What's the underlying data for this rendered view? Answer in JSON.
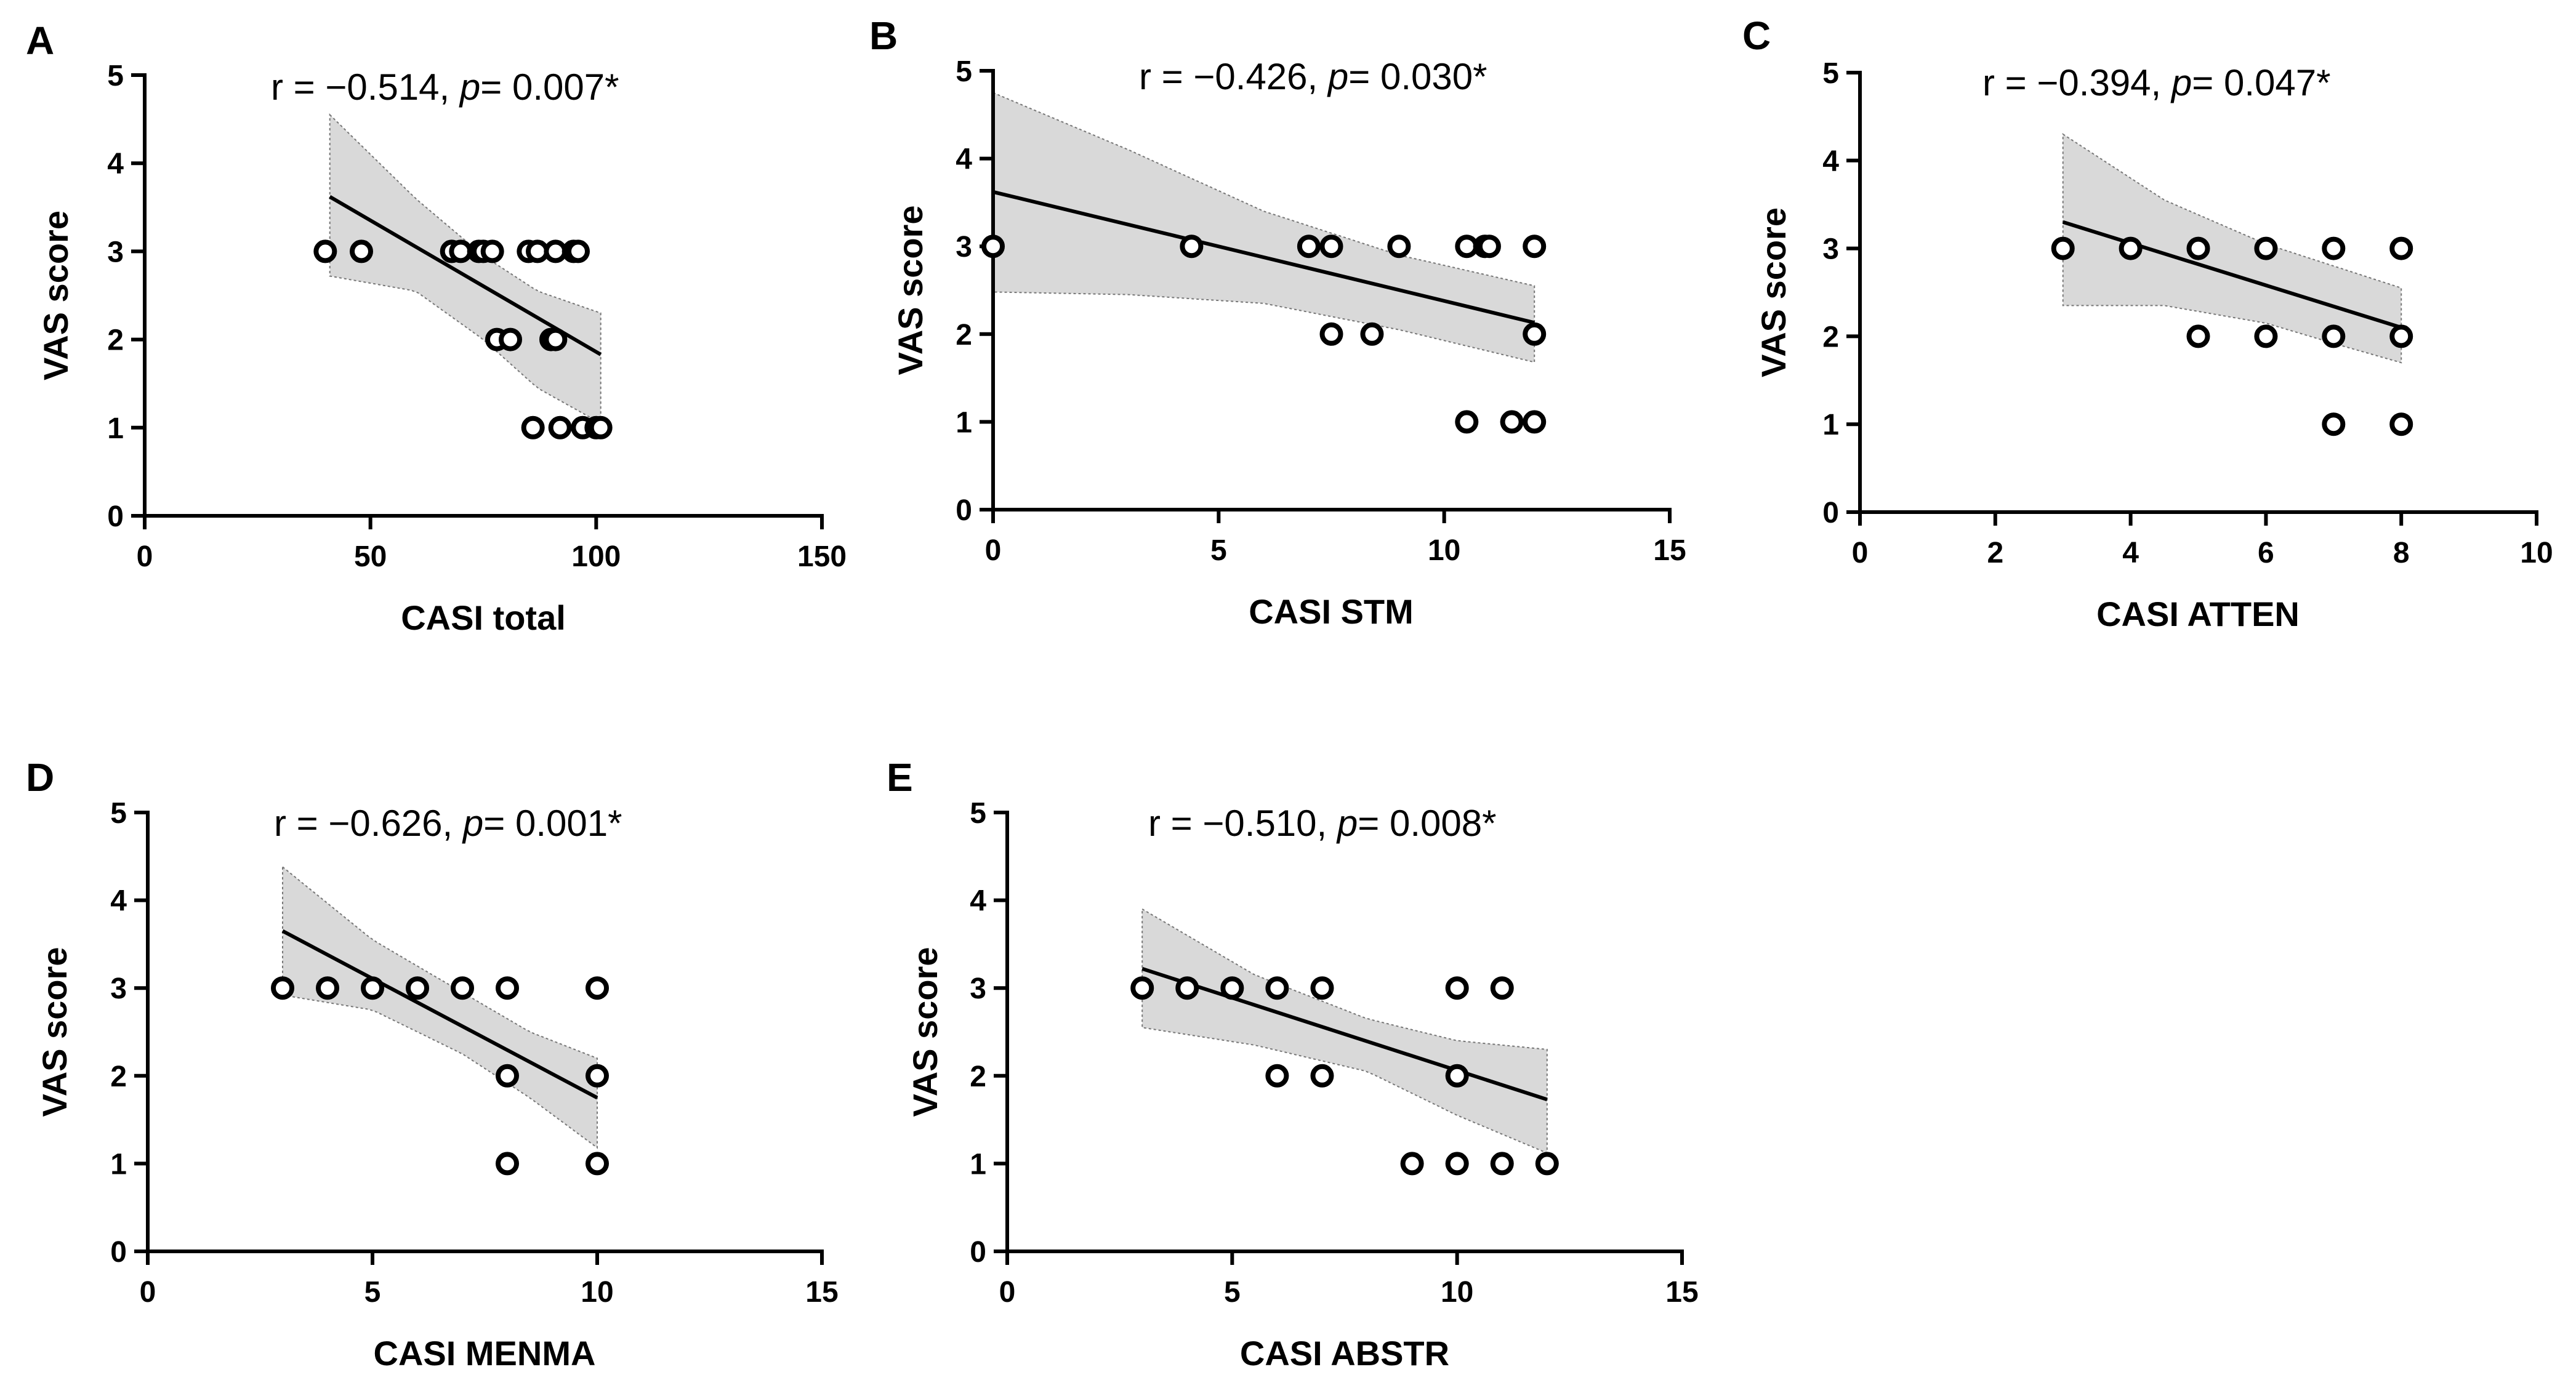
{
  "chart_data": [
    {
      "type": "scatter",
      "panel": "A",
      "xlabel": "CASI total",
      "ylabel": "VAS score",
      "annotation": {
        "prefix": "r = −0.514, ",
        "p_label": "p",
        "suffix": "= 0.007*"
      },
      "xlim": [
        0,
        150
      ],
      "ylim": [
        0,
        5
      ],
      "xticks": [
        0,
        50,
        100,
        150
      ],
      "yticks": [
        0,
        1,
        2,
        3,
        4,
        5
      ],
      "points": [
        [
          40,
          3
        ],
        [
          48,
          3
        ],
        [
          68,
          3
        ],
        [
          70,
          3
        ],
        [
          74,
          3
        ],
        [
          75,
          3
        ],
        [
          77,
          3
        ],
        [
          85,
          3
        ],
        [
          87,
          3
        ],
        [
          91,
          3
        ],
        [
          95,
          3
        ],
        [
          96,
          3
        ],
        [
          78,
          2
        ],
        [
          81,
          2
        ],
        [
          90,
          2
        ],
        [
          91,
          2
        ],
        [
          86,
          1
        ],
        [
          92,
          1
        ],
        [
          97,
          1
        ],
        [
          100,
          1
        ],
        [
          101,
          1
        ]
      ],
      "fit": {
        "x0": 41,
        "y0": 3.62,
        "x1": 101,
        "y1": 1.83
      },
      "ci_upper": [
        [
          41,
          4.55
        ],
        [
          60,
          3.6
        ],
        [
          75,
          2.95
        ],
        [
          87,
          2.55
        ],
        [
          101,
          2.3
        ]
      ],
      "ci_lower": [
        [
          41,
          2.72
        ],
        [
          60,
          2.55
        ],
        [
          75,
          2.0
        ],
        [
          87,
          1.45
        ],
        [
          101,
          1.05
        ]
      ]
    },
    {
      "type": "scatter",
      "panel": "B",
      "xlabel": "CASI STM",
      "ylabel": "VAS score",
      "annotation": {
        "prefix": "r = −0.426, ",
        "p_label": "p",
        "suffix": "= 0.030*"
      },
      "xlim": [
        0,
        15
      ],
      "ylim": [
        0,
        5
      ],
      "xticks": [
        0,
        5,
        10,
        15
      ],
      "yticks": [
        0,
        1,
        2,
        3,
        4,
        5
      ],
      "points": [
        [
          0,
          3
        ],
        [
          4.4,
          3
        ],
        [
          7,
          3
        ],
        [
          7.5,
          3
        ],
        [
          9,
          3
        ],
        [
          10.5,
          3
        ],
        [
          10.9,
          3
        ],
        [
          11,
          3
        ],
        [
          12,
          3
        ],
        [
          7.5,
          2
        ],
        [
          8.4,
          2
        ],
        [
          12,
          2
        ],
        [
          10.5,
          1
        ],
        [
          11.5,
          1
        ],
        [
          12,
          1
        ]
      ],
      "fit": {
        "x0": 0,
        "y0": 3.62,
        "x1": 12,
        "y1": 2.13
      },
      "ci_upper": [
        [
          0,
          4.75
        ],
        [
          3,
          4.1
        ],
        [
          6,
          3.4
        ],
        [
          9,
          2.9
        ],
        [
          12,
          2.55
        ]
      ],
      "ci_lower": [
        [
          0,
          2.48
        ],
        [
          3,
          2.45
        ],
        [
          6,
          2.35
        ],
        [
          9,
          2.05
        ],
        [
          12,
          1.68
        ]
      ]
    },
    {
      "type": "scatter",
      "panel": "C",
      "xlabel": "CASI ATTEN",
      "ylabel": "VAS score",
      "annotation": {
        "prefix": "r = −0.394, ",
        "p_label": "p",
        "suffix": "= 0.047*"
      },
      "xlim": [
        0,
        10
      ],
      "ylim": [
        0,
        5
      ],
      "xticks": [
        0,
        2,
        4,
        6,
        8,
        10
      ],
      "yticks": [
        0,
        1,
        2,
        3,
        4,
        5
      ],
      "points": [
        [
          3,
          3
        ],
        [
          4,
          3
        ],
        [
          5,
          3
        ],
        [
          6,
          3
        ],
        [
          7,
          3
        ],
        [
          8,
          3
        ],
        [
          5,
          2
        ],
        [
          6,
          2
        ],
        [
          7,
          2
        ],
        [
          8,
          2
        ],
        [
          7,
          1
        ],
        [
          8,
          1
        ]
      ],
      "fit": {
        "x0": 3,
        "y0": 3.3,
        "x1": 8,
        "y1": 2.1
      },
      "ci_upper": [
        [
          3,
          4.3
        ],
        [
          4.5,
          3.55
        ],
        [
          6,
          3.05
        ],
        [
          7,
          2.8
        ],
        [
          8,
          2.55
        ]
      ],
      "ci_lower": [
        [
          3,
          2.35
        ],
        [
          4.5,
          2.35
        ],
        [
          6,
          2.15
        ],
        [
          7,
          1.92
        ],
        [
          8,
          1.7
        ]
      ]
    },
    {
      "type": "scatter",
      "panel": "D",
      "xlabel": "CASI MENMA",
      "ylabel": "VAS score",
      "annotation": {
        "prefix": "r = −0.626, ",
        "p_label": "p",
        "suffix": "= 0.001*"
      },
      "xlim": [
        0,
        15
      ],
      "ylim": [
        0,
        5
      ],
      "xticks": [
        0,
        5,
        10,
        15
      ],
      "yticks": [
        0,
        1,
        2,
        3,
        4,
        5
      ],
      "points": [
        [
          3,
          3
        ],
        [
          4,
          3
        ],
        [
          5,
          3
        ],
        [
          6,
          3
        ],
        [
          7,
          3
        ],
        [
          8,
          3
        ],
        [
          10,
          3
        ],
        [
          8,
          2
        ],
        [
          10,
          2
        ],
        [
          8,
          1
        ],
        [
          10,
          1
        ]
      ],
      "fit": {
        "x0": 3,
        "y0": 3.65,
        "x1": 10,
        "y1": 1.75
      },
      "ci_upper": [
        [
          3,
          4.38
        ],
        [
          5,
          3.55
        ],
        [
          7,
          2.95
        ],
        [
          8.5,
          2.5
        ],
        [
          10,
          2.2
        ]
      ],
      "ci_lower": [
        [
          3,
          2.92
        ],
        [
          5,
          2.75
        ],
        [
          7,
          2.25
        ],
        [
          8.5,
          1.75
        ],
        [
          10,
          1.18
        ]
      ]
    },
    {
      "type": "scatter",
      "panel": "E",
      "xlabel": "CASI ABSTR",
      "ylabel": "VAS score",
      "annotation": {
        "prefix": "r = −0.510, ",
        "p_label": "p",
        "suffix": "= 0.008*"
      },
      "xlim": [
        0,
        15
      ],
      "ylim": [
        0,
        5
      ],
      "xticks": [
        0,
        5,
        10,
        15
      ],
      "yticks": [
        0,
        1,
        2,
        3,
        4,
        5
      ],
      "points": [
        [
          3,
          3
        ],
        [
          4,
          3
        ],
        [
          5,
          3
        ],
        [
          6,
          3
        ],
        [
          7,
          3
        ],
        [
          10,
          3
        ],
        [
          11,
          3
        ],
        [
          6,
          2
        ],
        [
          7,
          2
        ],
        [
          10,
          2
        ],
        [
          9,
          1
        ],
        [
          10,
          1
        ],
        [
          11,
          1
        ],
        [
          12,
          1
        ]
      ],
      "fit": {
        "x0": 3,
        "y0": 3.22,
        "x1": 12,
        "y1": 1.73
      },
      "ci_upper": [
        [
          3,
          3.9
        ],
        [
          5.5,
          3.15
        ],
        [
          8,
          2.65
        ],
        [
          10,
          2.4
        ],
        [
          12,
          2.3
        ]
      ],
      "ci_lower": [
        [
          3,
          2.55
        ],
        [
          5.5,
          2.35
        ],
        [
          8,
          2.05
        ],
        [
          10,
          1.55
        ],
        [
          12,
          1.12
        ]
      ]
    }
  ]
}
